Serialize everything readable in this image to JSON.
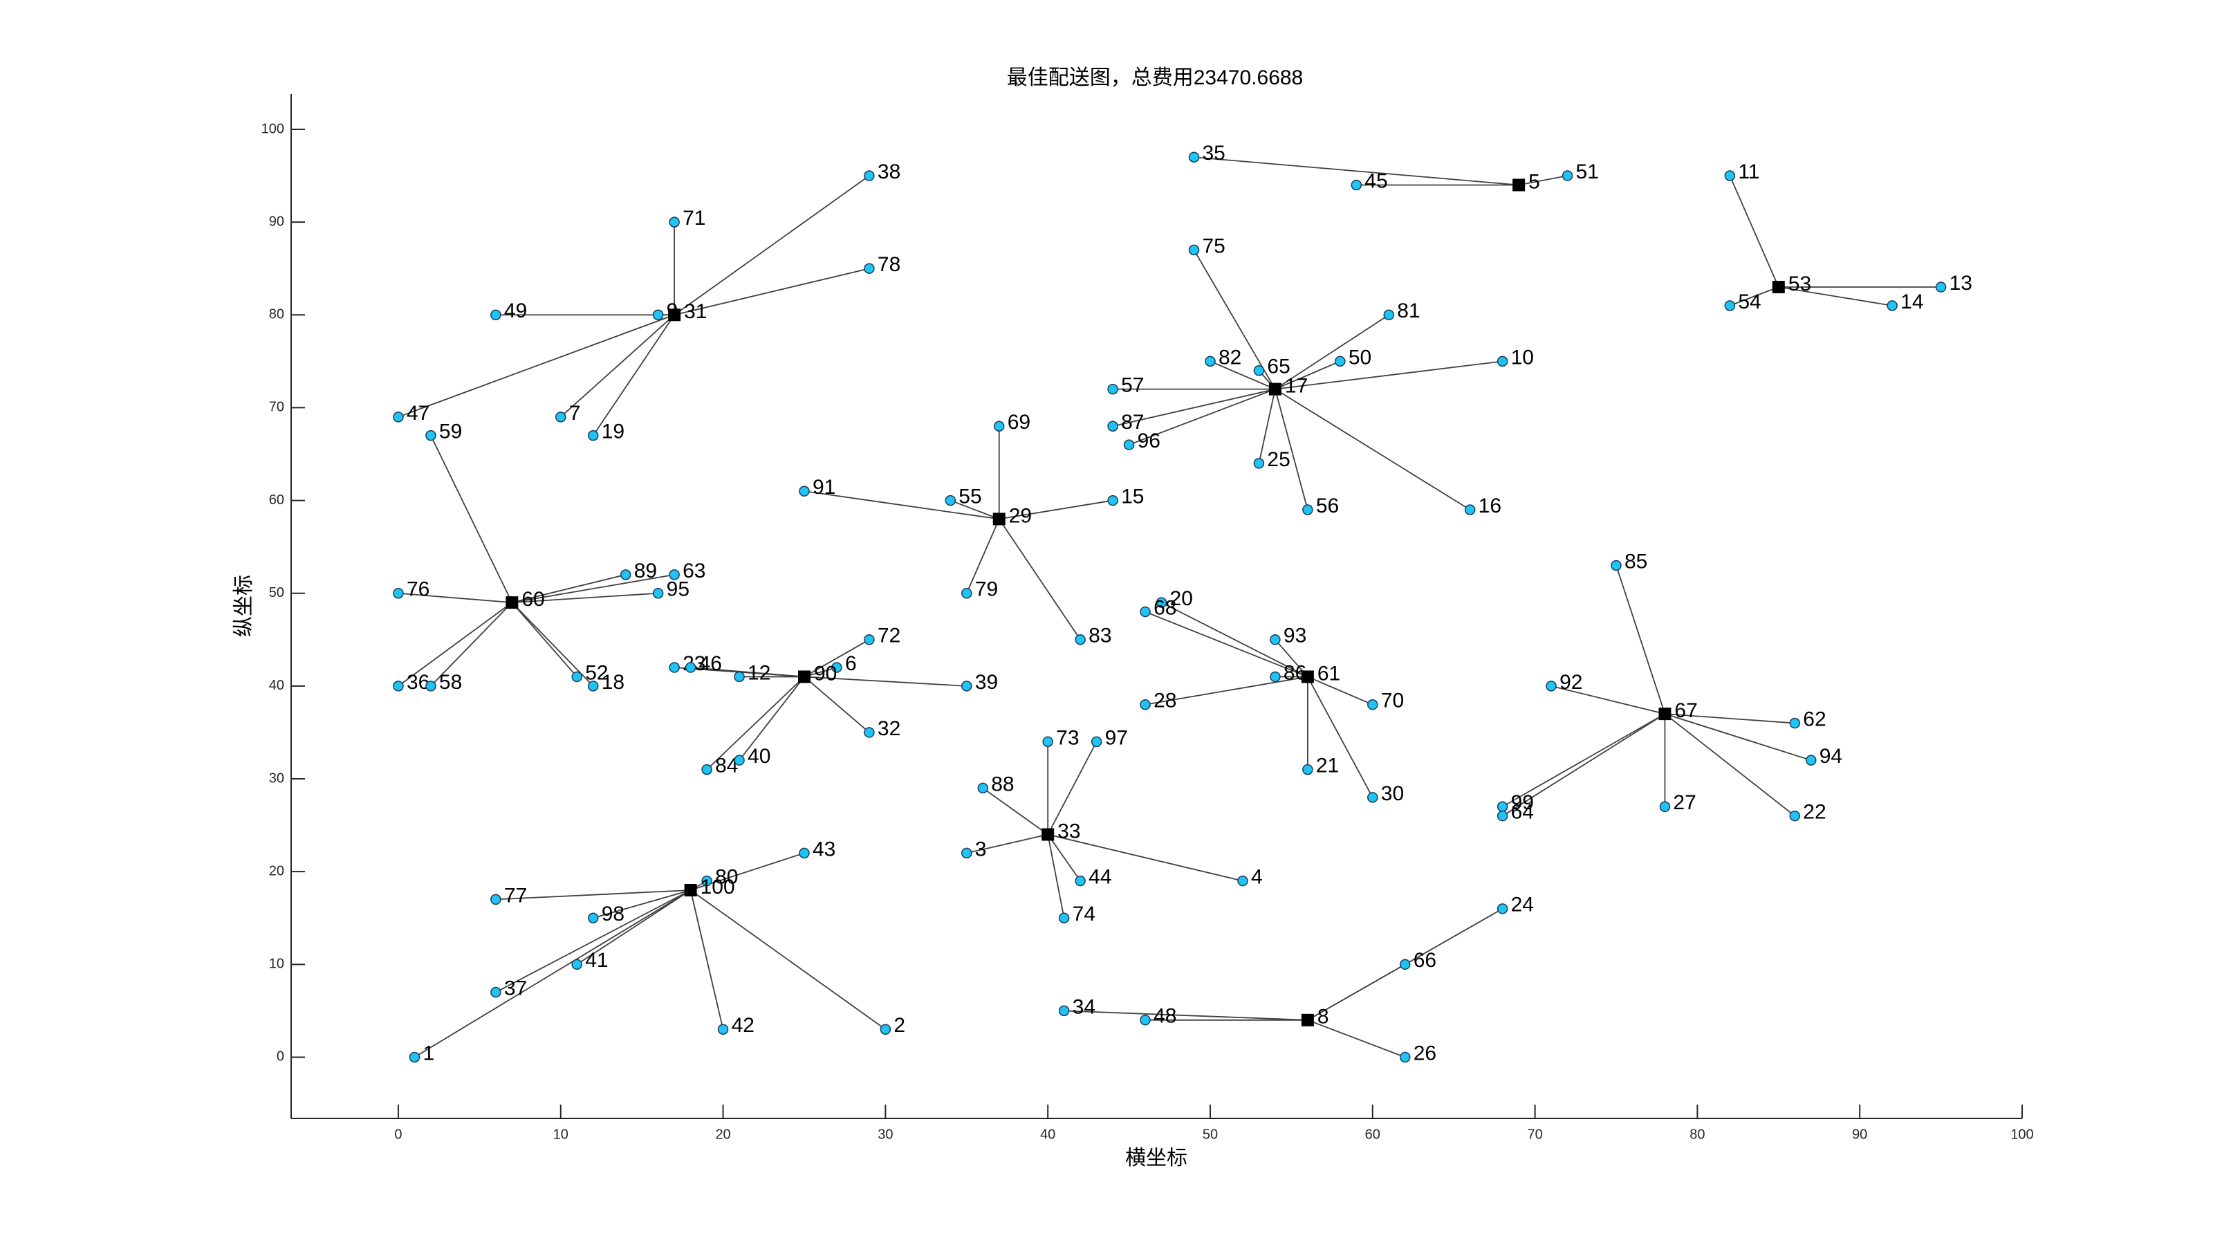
{
  "chart_data": {
    "type": "network",
    "title": "最佳配送图，总费用23470.6688",
    "xlabel": "横坐标",
    "ylabel": "纵坐标",
    "xlim": [
      -6.6,
      100
    ],
    "ylim": [
      -6.6,
      103.8
    ],
    "xticks": [
      0,
      10,
      20,
      30,
      40,
      50,
      60,
      70,
      80,
      90,
      100
    ],
    "yticks": [
      0,
      10,
      20,
      30,
      40,
      50,
      60,
      70,
      80,
      90,
      100
    ],
    "customer_color": "#20c4f4",
    "depot_color": "#000000",
    "line_color": "#404040",
    "depots": [
      {
        "label": "31",
        "x": 17,
        "y": 80,
        "customers": {
          "labels": [
            "71",
            "38",
            "78",
            "49",
            "9",
            "47",
            "7",
            "19"
          ],
          "x": [
            17,
            29,
            29,
            6,
            16,
            0,
            10,
            12
          ],
          "y": [
            90,
            95,
            85,
            80,
            80,
            69,
            69,
            67
          ]
        }
      },
      {
        "label": "60",
        "x": 7,
        "y": 49,
        "customers": {
          "labels": [
            "59",
            "76",
            "89",
            "63",
            "95",
            "36",
            "58",
            "52",
            "18"
          ],
          "x": [
            2,
            0,
            14,
            17,
            16,
            0,
            2,
            11,
            12
          ],
          "y": [
            67,
            50,
            52,
            52,
            50,
            40,
            40,
            41,
            40
          ]
        }
      },
      {
        "label": "90",
        "x": 25,
        "y": 41,
        "customers": {
          "labels": [
            "23",
            "46",
            "12",
            "6",
            "72",
            "39",
            "32",
            "84",
            "40"
          ],
          "x": [
            17,
            18,
            21,
            27,
            29,
            35,
            29,
            19,
            21
          ],
          "y": [
            42,
            42,
            41,
            42,
            45,
            40,
            35,
            31,
            32
          ]
        }
      },
      {
        "label": "29",
        "x": 37,
        "y": 58,
        "customers": {
          "labels": [
            "69",
            "91",
            "55",
            "15",
            "79",
            "83"
          ],
          "x": [
            37,
            25,
            34,
            44,
            35,
            42
          ],
          "y": [
            68,
            61,
            60,
            60,
            50,
            45
          ]
        }
      },
      {
        "label": "17",
        "x": 54,
        "y": 72,
        "customers": {
          "labels": [
            "75",
            "82",
            "65",
            "50",
            "81",
            "10",
            "57",
            "87",
            "96",
            "25",
            "56",
            "16"
          ],
          "x": [
            49,
            50,
            53,
            58,
            61,
            68,
            44,
            44,
            45,
            53,
            56,
            66
          ],
          "y": [
            87,
            75,
            74,
            75,
            80,
            75,
            72,
            68,
            66,
            64,
            59,
            59
          ]
        }
      },
      {
        "label": "5",
        "x": 69,
        "y": 94,
        "customers": {
          "labels": [
            "35",
            "45",
            "51"
          ],
          "x": [
            49,
            59,
            72
          ],
          "y": [
            97,
            94,
            95
          ]
        }
      },
      {
        "label": "53",
        "x": 85,
        "y": 83,
        "customers": {
          "labels": [
            "11",
            "54",
            "14",
            "13"
          ],
          "x": [
            82,
            82,
            92,
            95
          ],
          "y": [
            95,
            81,
            81,
            83
          ]
        }
      },
      {
        "label": "61",
        "x": 56,
        "y": 41,
        "customers": {
          "labels": [
            "20",
            "68",
            "93",
            "86",
            "28",
            "70",
            "21",
            "30"
          ],
          "x": [
            47,
            46,
            54,
            54,
            46,
            60,
            56,
            60
          ],
          "y": [
            49,
            48,
            45,
            41,
            38,
            38,
            31,
            28
          ]
        }
      },
      {
        "label": "67",
        "x": 78,
        "y": 37,
        "customers": {
          "labels": [
            "85",
            "92",
            "62",
            "94",
            "27",
            "22",
            "99",
            "64"
          ],
          "x": [
            75,
            71,
            86,
            87,
            78,
            86,
            68,
            68
          ],
          "y": [
            53,
            40,
            36,
            32,
            27,
            26,
            27,
            26
          ]
        }
      },
      {
        "label": "33",
        "x": 40,
        "y": 24,
        "customers": {
          "labels": [
            "73",
            "97",
            "88",
            "3",
            "44",
            "74",
            "4"
          ],
          "x": [
            40,
            43,
            36,
            35,
            42,
            41,
            52
          ],
          "y": [
            34,
            34,
            29,
            22,
            19,
            15,
            19
          ]
        }
      },
      {
        "label": "100",
        "x": 18,
        "y": 18,
        "customers": {
          "labels": [
            "80",
            "43",
            "77",
            "98",
            "41",
            "37",
            "1",
            "42",
            "2"
          ],
          "x": [
            19,
            25,
            6,
            12,
            11,
            6,
            1,
            20,
            30
          ],
          "y": [
            19,
            22,
            17,
            15,
            10,
            7,
            0,
            3,
            3
          ]
        }
      },
      {
        "label": "8",
        "x": 56,
        "y": 4,
        "customers": {
          "labels": [
            "34",
            "48",
            "66",
            "24",
            "26"
          ],
          "x": [
            41,
            46,
            62,
            68,
            62
          ],
          "y": [
            5,
            4,
            10,
            16,
            0
          ]
        }
      }
    ]
  }
}
